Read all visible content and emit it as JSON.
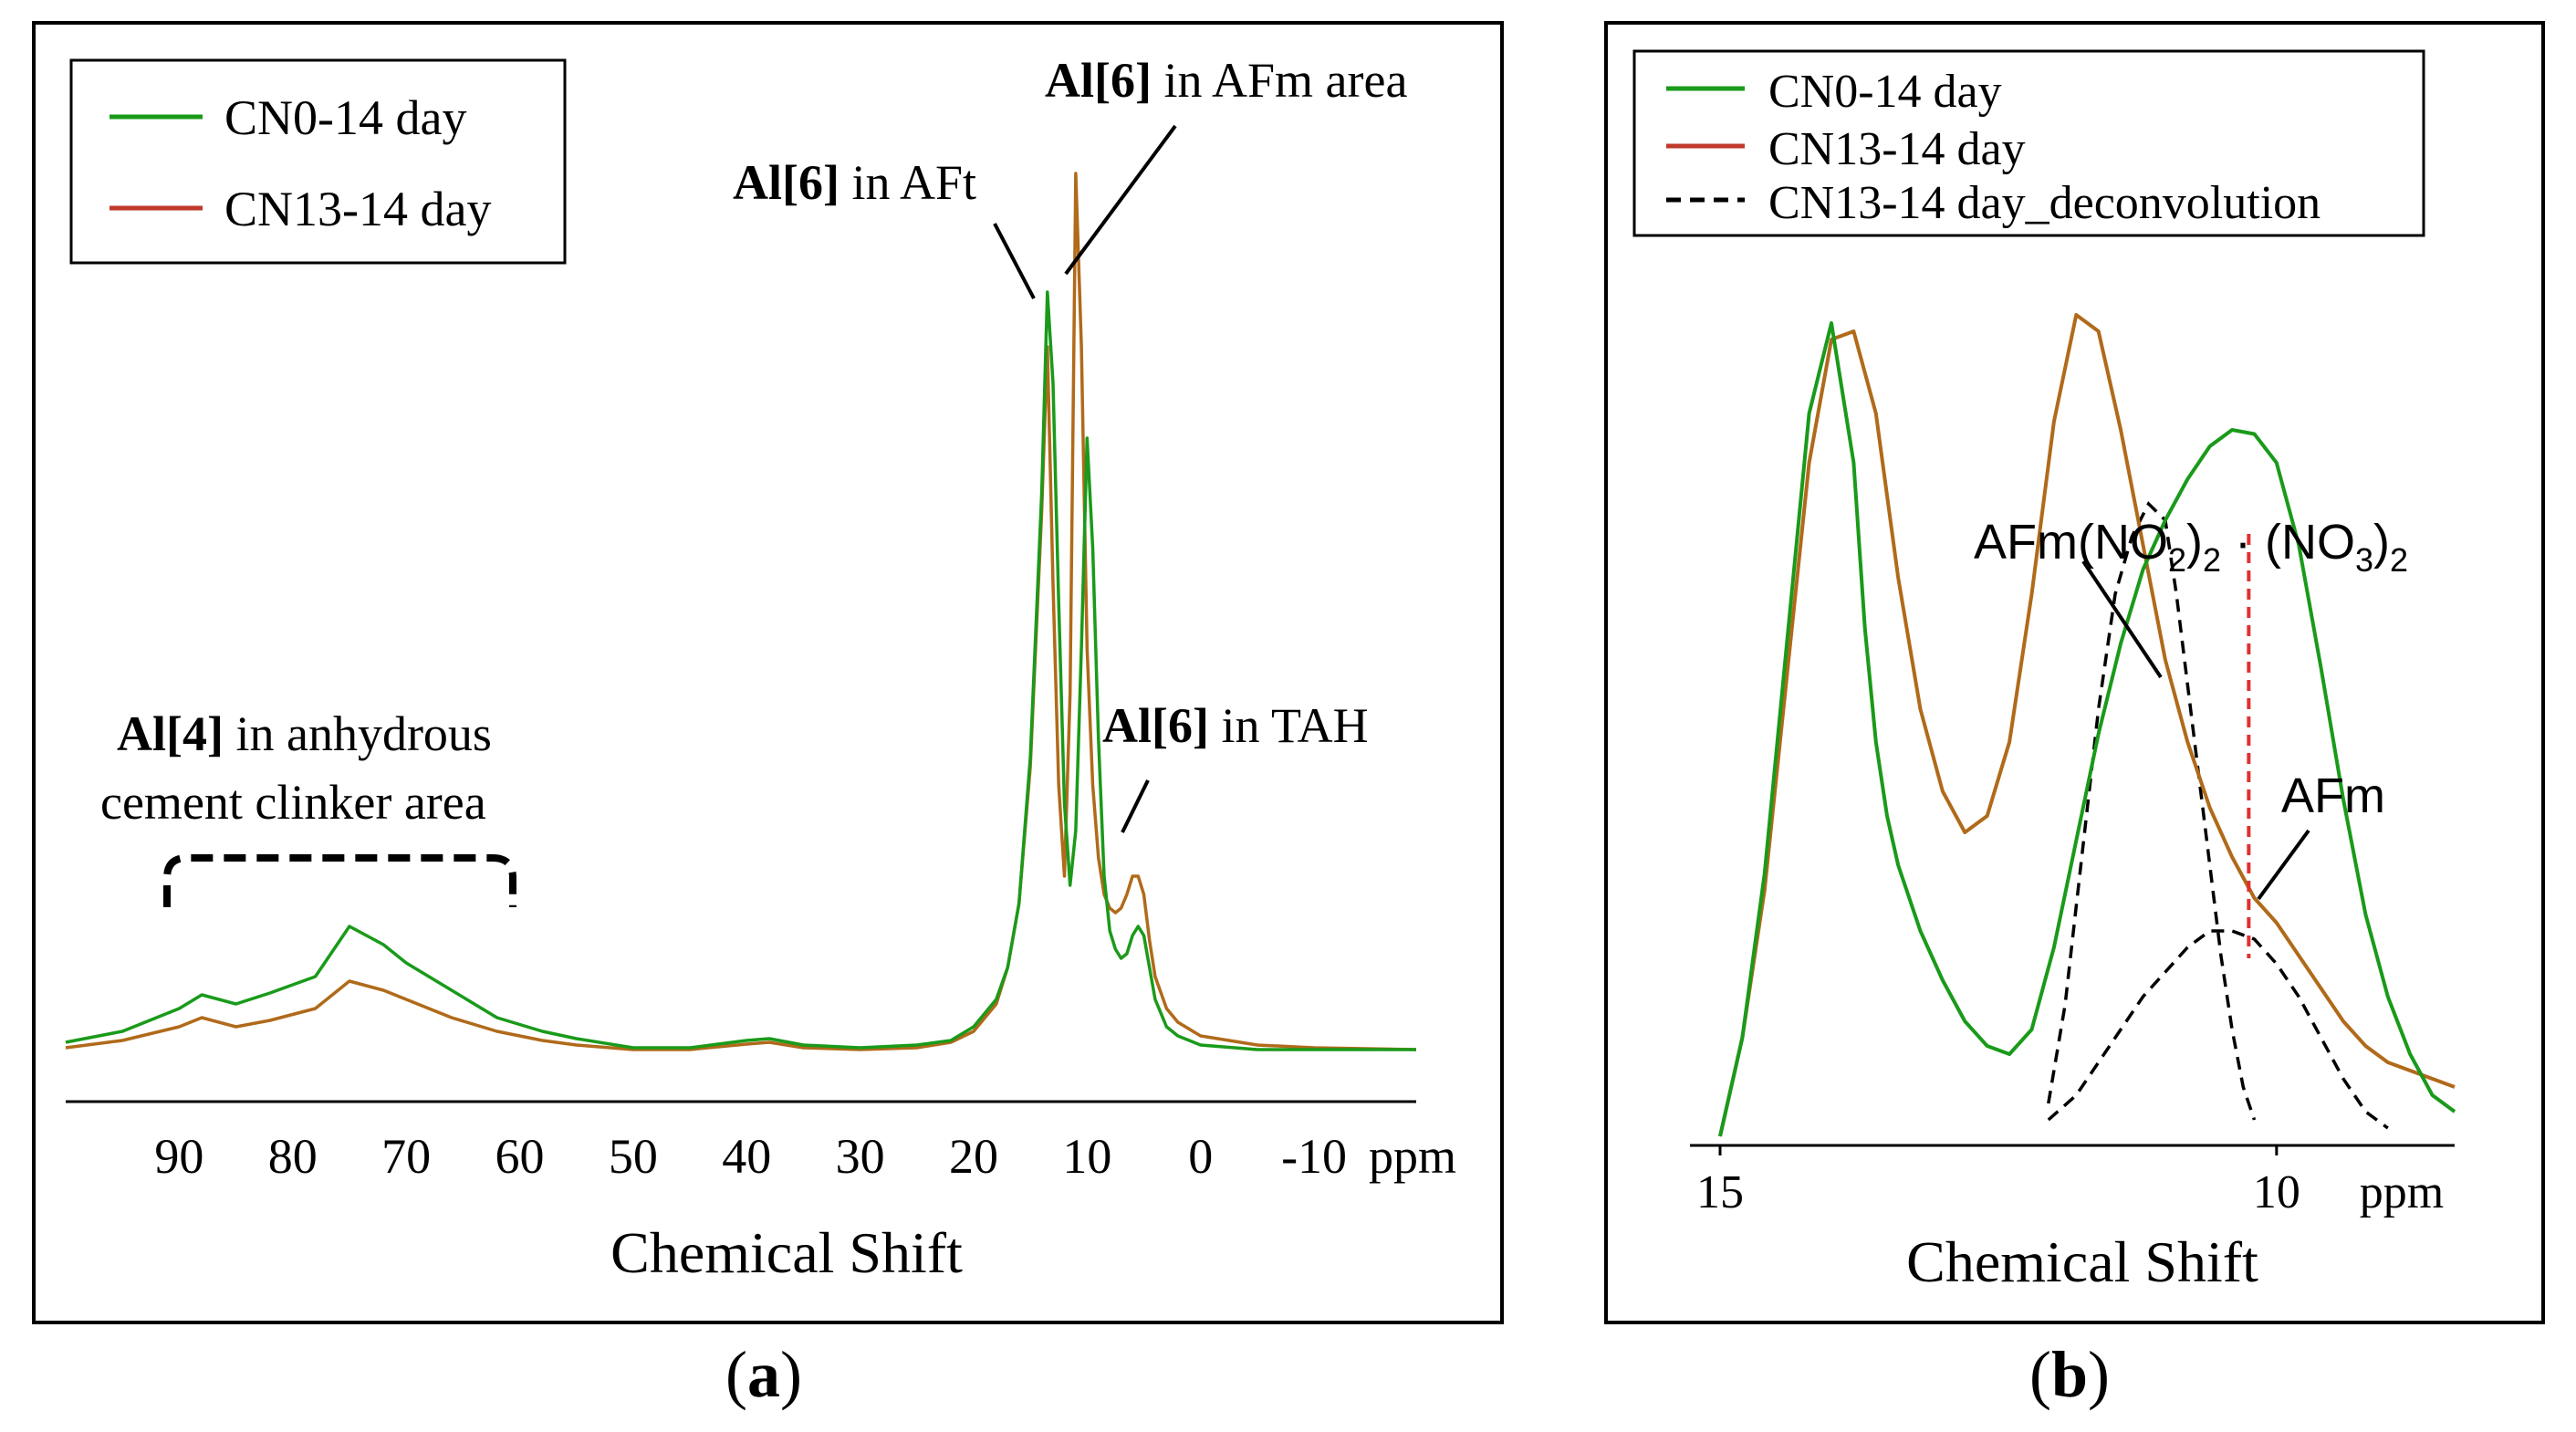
{
  "colors": {
    "cn0": "#1a9a1a",
    "cn13": "#b06a1a",
    "cn13_legend": "#c0392b",
    "deconv": "#000000",
    "ref_line": "#e03030",
    "frame": "#000000"
  },
  "chart_data": [
    {
      "id": "a",
      "type": "line",
      "panel_label": "a",
      "xlabel": "Chemical Shift",
      "x_unit": "ppm",
      "xlim": [
        100,
        -19
      ],
      "x_ticks": [
        90,
        80,
        70,
        60,
        50,
        40,
        30,
        20,
        10,
        0,
        -10
      ],
      "x_tick_labels": [
        "90",
        "80",
        "70",
        "60",
        "50",
        "40",
        "30",
        "20",
        "10",
        "0",
        "-10"
      ],
      "ylim": [
        0,
        1.0
      ],
      "legend": {
        "placement": "top-left",
        "entries": [
          "CN0-14 day",
          "CN13-14 day"
        ]
      },
      "annotations": [
        {
          "id": "al6-aft",
          "bold": "Al[6]",
          "text": " in AFt",
          "target_x": 13.5
        },
        {
          "id": "al6-afm",
          "bold": "Al[6]",
          "text": " in AFm area",
          "target_x": 11
        },
        {
          "id": "al6-tah",
          "bold": "Al[6]",
          "text": " in TAH",
          "target_x": 5
        },
        {
          "id": "al4-clinker",
          "bold": "Al[4]",
          "text": " in anhydrous",
          "text2": "cement clinker area",
          "range": [
            92,
            60
          ]
        }
      ],
      "series": [
        {
          "name": "CN0-14 day",
          "x": [
            100,
            95,
            90,
            88,
            85,
            82,
            78,
            75,
            72,
            70,
            66,
            62,
            58,
            55,
            50,
            45,
            40,
            38,
            35,
            30,
            25,
            22,
            20,
            18,
            17,
            16,
            15,
            14,
            13.5,
            13,
            12.5,
            12,
            11.5,
            11,
            10.5,
            10,
            9.5,
            9,
            8.5,
            8,
            7.5,
            7,
            6.5,
            6,
            5.5,
            5,
            4.5,
            4,
            3,
            2,
            0,
            -5,
            -10,
            -19
          ],
          "y": [
            0.018,
            0.03,
            0.055,
            0.07,
            0.06,
            0.072,
            0.09,
            0.145,
            0.125,
            0.105,
            0.075,
            0.045,
            0.03,
            0.022,
            0.012,
            0.012,
            0.02,
            0.022,
            0.015,
            0.012,
            0.015,
            0.02,
            0.035,
            0.065,
            0.1,
            0.17,
            0.33,
            0.62,
            0.84,
            0.74,
            0.5,
            0.28,
            0.19,
            0.25,
            0.45,
            0.68,
            0.56,
            0.35,
            0.2,
            0.14,
            0.12,
            0.11,
            0.115,
            0.135,
            0.145,
            0.135,
            0.1,
            0.065,
            0.035,
            0.025,
            0.015,
            0.01,
            0.01,
            0.01
          ]
        },
        {
          "name": "CN13-14 day",
          "x": [
            100,
            95,
            90,
            88,
            85,
            82,
            78,
            75,
            72,
            70,
            66,
            62,
            58,
            55,
            50,
            45,
            40,
            38,
            35,
            30,
            25,
            22,
            20,
            18,
            17,
            16,
            15,
            14,
            13.5,
            13,
            12.5,
            12,
            11.5,
            11,
            10.5,
            10,
            9.5,
            9,
            8.5,
            8,
            7.5,
            7,
            6.5,
            6,
            5.5,
            5,
            4.5,
            4,
            3,
            2,
            0,
            -5,
            -10,
            -19
          ],
          "y": [
            0.012,
            0.02,
            0.035,
            0.045,
            0.035,
            0.042,
            0.055,
            0.085,
            0.075,
            0.065,
            0.045,
            0.03,
            0.02,
            0.015,
            0.01,
            0.01,
            0.016,
            0.018,
            0.012,
            0.01,
            0.012,
            0.018,
            0.03,
            0.06,
            0.1,
            0.17,
            0.32,
            0.6,
            0.78,
            0.52,
            0.3,
            0.2,
            0.4,
            0.97,
            0.78,
            0.45,
            0.3,
            0.22,
            0.18,
            0.165,
            0.16,
            0.165,
            0.18,
            0.2,
            0.2,
            0.18,
            0.13,
            0.09,
            0.055,
            0.04,
            0.025,
            0.015,
            0.012,
            0.01
          ]
        }
      ]
    },
    {
      "id": "b",
      "type": "line",
      "panel_label": "b",
      "xlabel": "Chemical Shift",
      "x_unit": "ppm",
      "xlim": [
        15,
        8.4
      ],
      "x_ticks": [
        15,
        10
      ],
      "x_tick_labels": [
        "15",
        "10"
      ],
      "ylim": [
        0,
        1.0
      ],
      "legend": {
        "placement": "top-left",
        "entries": [
          "CN0-14 day",
          "CN13-14 day",
          "CN13-14 day_deconvolution"
        ]
      },
      "reference_line_x": 10.25,
      "annotations": [
        {
          "id": "afm-no2-no3",
          "main": "AFm(NO",
          "sub1": "2",
          "mid": ")",
          "sub2": "2",
          "dot": " · (NO",
          "sub3": "3",
          "end": ")",
          "sub4": "2",
          "target_x": 10.95
        },
        {
          "id": "afm",
          "text": "AFm",
          "target_x": 10.0
        }
      ],
      "series": [
        {
          "name": "CN0-14 day",
          "x": [
            15,
            14.8,
            14.6,
            14.4,
            14.2,
            14.0,
            13.8,
            13.7,
            13.6,
            13.5,
            13.4,
            13.2,
            13.0,
            12.8,
            12.6,
            12.4,
            12.2,
            12.0,
            11.8,
            11.6,
            11.4,
            11.2,
            11.0,
            10.8,
            10.6,
            10.4,
            10.2,
            10.0,
            9.8,
            9.6,
            9.4,
            9.2,
            9.0,
            8.8,
            8.6,
            8.4
          ],
          "y": [
            0.0,
            0.12,
            0.32,
            0.6,
            0.88,
            0.99,
            0.82,
            0.62,
            0.48,
            0.39,
            0.33,
            0.25,
            0.19,
            0.14,
            0.11,
            0.1,
            0.13,
            0.23,
            0.36,
            0.49,
            0.6,
            0.69,
            0.75,
            0.8,
            0.84,
            0.86,
            0.855,
            0.82,
            0.72,
            0.57,
            0.41,
            0.27,
            0.17,
            0.1,
            0.05,
            0.03
          ]
        },
        {
          "name": "CN13-14 day",
          "x": [
            15,
            14.8,
            14.6,
            14.4,
            14.2,
            14.0,
            13.8,
            13.6,
            13.4,
            13.2,
            13.0,
            12.8,
            12.6,
            12.4,
            12.2,
            12.0,
            11.8,
            11.6,
            11.4,
            11.2,
            11.0,
            10.8,
            10.6,
            10.4,
            10.2,
            10.0,
            9.8,
            9.6,
            9.4,
            9.2,
            9.0,
            8.8,
            8.6,
            8.4
          ],
          "y": [
            0.0,
            0.12,
            0.3,
            0.56,
            0.82,
            0.97,
            0.98,
            0.88,
            0.68,
            0.52,
            0.42,
            0.37,
            0.39,
            0.48,
            0.66,
            0.87,
            1.0,
            0.98,
            0.86,
            0.72,
            0.58,
            0.48,
            0.4,
            0.34,
            0.29,
            0.26,
            0.22,
            0.18,
            0.14,
            0.11,
            0.09,
            0.08,
            0.07,
            0.06
          ]
        },
        {
          "name": "CN13-14 day_deconvolution",
          "components": [
            {
              "x": [
                12.05,
                11.9,
                11.75,
                11.6,
                11.45,
                11.3,
                11.15,
                11.0,
                10.9,
                10.8,
                10.7,
                10.6,
                10.5,
                10.4,
                10.3,
                10.2
              ],
              "y": [
                0.04,
                0.16,
                0.34,
                0.52,
                0.66,
                0.73,
                0.77,
                0.75,
                0.66,
                0.55,
                0.44,
                0.33,
                0.22,
                0.13,
                0.06,
                0.02
              ]
            },
            {
              "x": [
                12.05,
                11.8,
                11.6,
                11.4,
                11.2,
                11.0,
                10.8,
                10.6,
                10.4,
                10.2,
                10.0,
                9.8,
                9.6,
                9.4,
                9.2,
                9.0
              ],
              "y": [
                0.02,
                0.05,
                0.09,
                0.13,
                0.17,
                0.2,
                0.23,
                0.25,
                0.25,
                0.24,
                0.21,
                0.17,
                0.12,
                0.07,
                0.03,
                0.01
              ]
            }
          ]
        }
      ]
    }
  ]
}
